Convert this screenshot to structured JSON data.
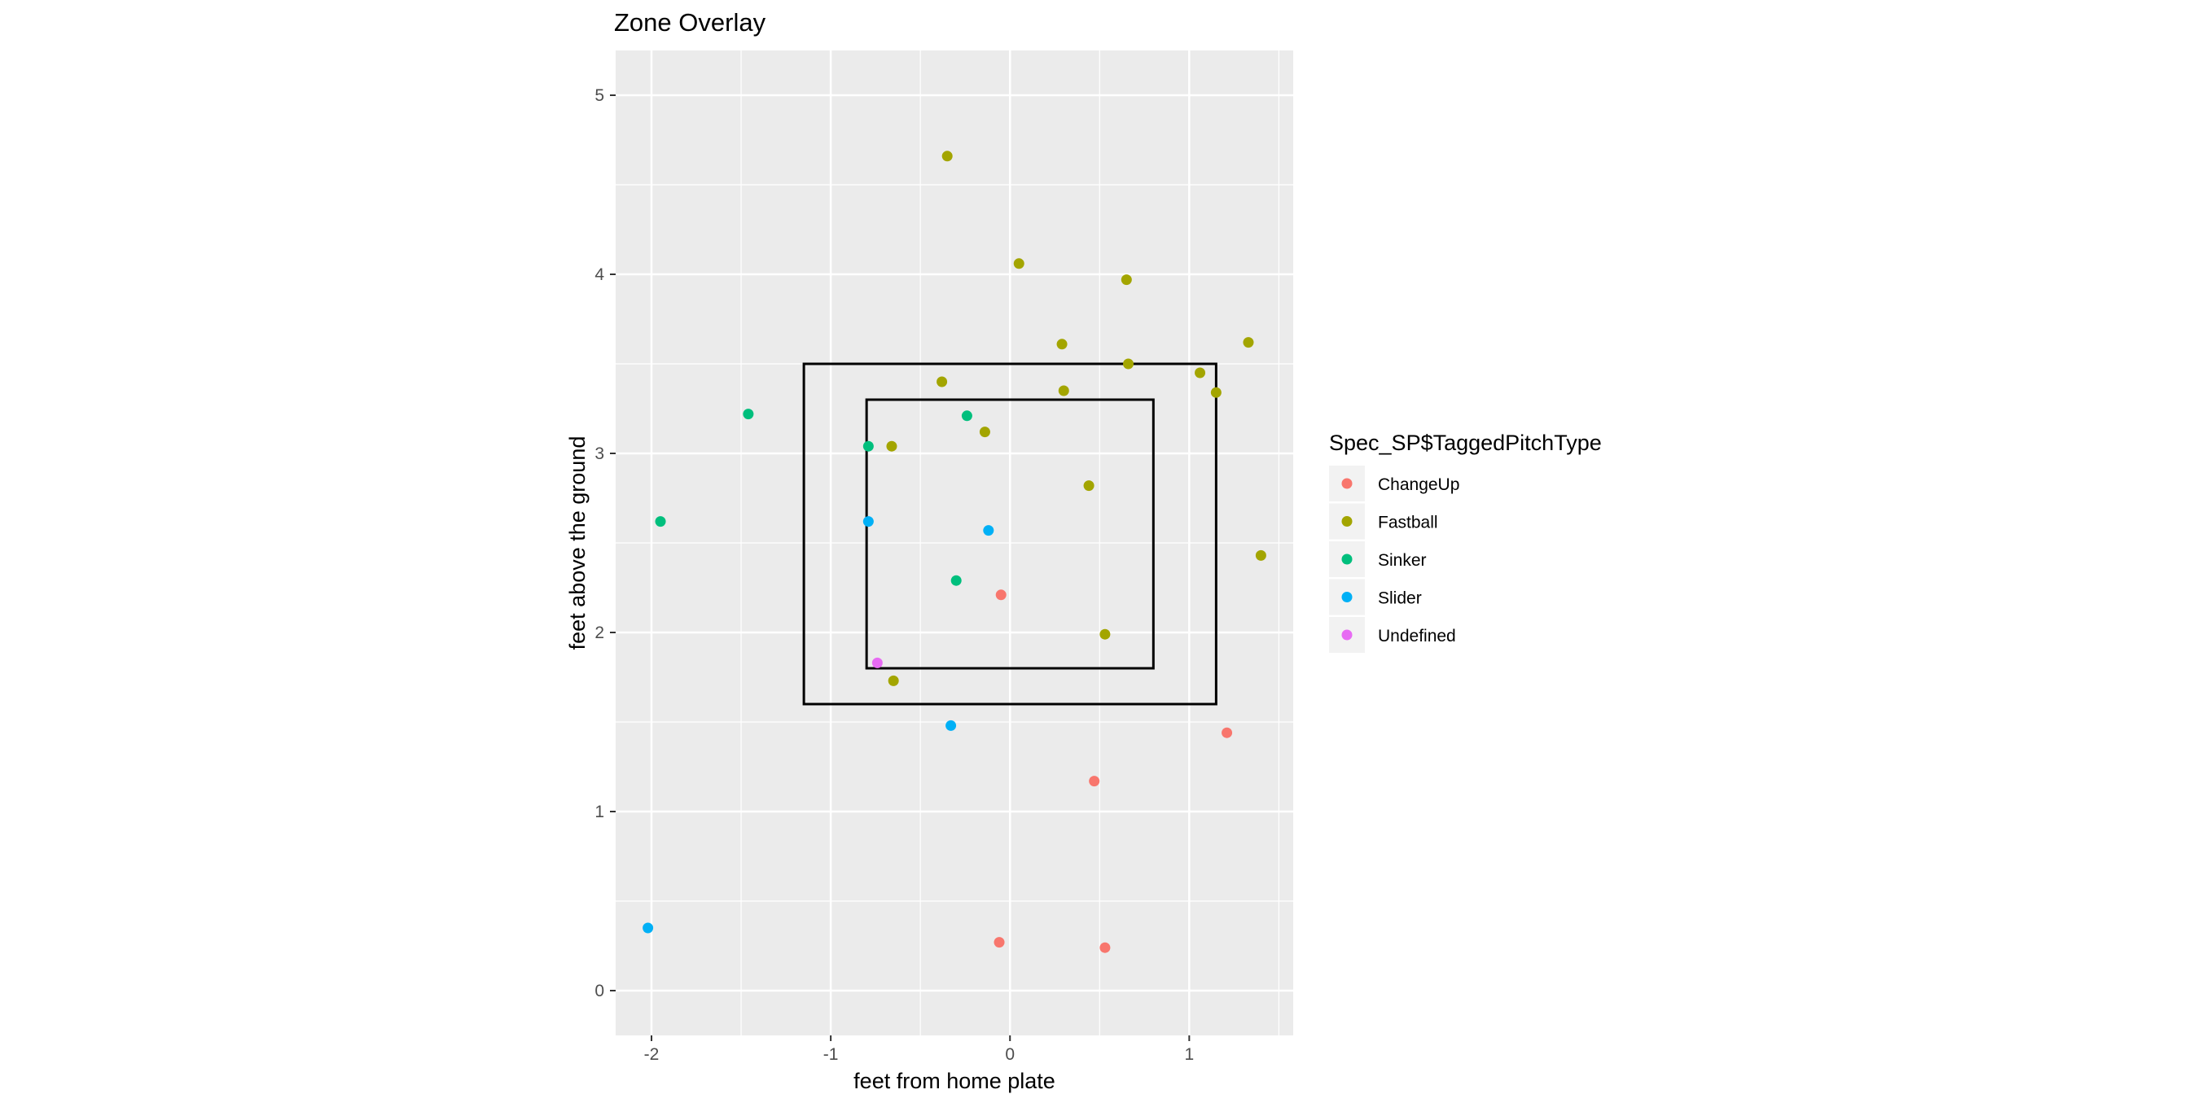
{
  "chart_data": {
    "type": "scatter",
    "title": "Zone Overlay",
    "xlabel": "feet from home plate",
    "ylabel": "feet above the ground",
    "xlim": [
      -2.2,
      1.58
    ],
    "ylim": [
      -0.25,
      5.25
    ],
    "x_ticks": [
      -2,
      -1,
      0,
      1
    ],
    "y_ticks": [
      0,
      1,
      2,
      3,
      4,
      5
    ],
    "grid": true,
    "legend": {
      "title": "Spec_SP$TaggedPitchType",
      "position": "right"
    },
    "series": [
      {
        "name": "ChangeUp",
        "color": "#F8766D",
        "x": [
          -0.05,
          -0.06,
          0.47,
          1.21,
          0.53
        ],
        "y": [
          2.21,
          0.27,
          1.17,
          1.44,
          0.24
        ]
      },
      {
        "name": "Fastball",
        "color": "#A3A500",
        "x": [
          -0.35,
          0.05,
          0.65,
          0.29,
          0.66,
          1.06,
          1.15,
          1.33,
          -0.38,
          0.3,
          -0.14,
          -0.66,
          0.44,
          1.4,
          0.53,
          -0.65
        ],
        "y": [
          4.66,
          4.06,
          3.97,
          3.61,
          3.5,
          3.45,
          3.34,
          3.62,
          3.4,
          3.35,
          3.12,
          3.04,
          2.82,
          2.43,
          1.99,
          1.73
        ]
      },
      {
        "name": "Sinker",
        "color": "#00BF7D",
        "x": [
          -1.46,
          -0.24,
          -0.79,
          -1.95,
          -0.3
        ],
        "y": [
          3.22,
          3.21,
          3.04,
          2.62,
          2.29
        ]
      },
      {
        "name": "Slider",
        "color": "#00B0F6",
        "x": [
          -0.79,
          -0.12,
          -0.33,
          -2.02
        ],
        "y": [
          2.62,
          2.57,
          1.48,
          0.35
        ]
      },
      {
        "name": "Undefined",
        "color": "#E76BF3",
        "x": [
          -0.74
        ],
        "y": [
          1.83
        ]
      }
    ],
    "zones": [
      {
        "x": [
          -1.15,
          1.15
        ],
        "y": [
          1.6,
          3.5
        ]
      },
      {
        "x": [
          -0.8,
          0.8
        ],
        "y": [
          1.8,
          3.3
        ]
      }
    ]
  }
}
